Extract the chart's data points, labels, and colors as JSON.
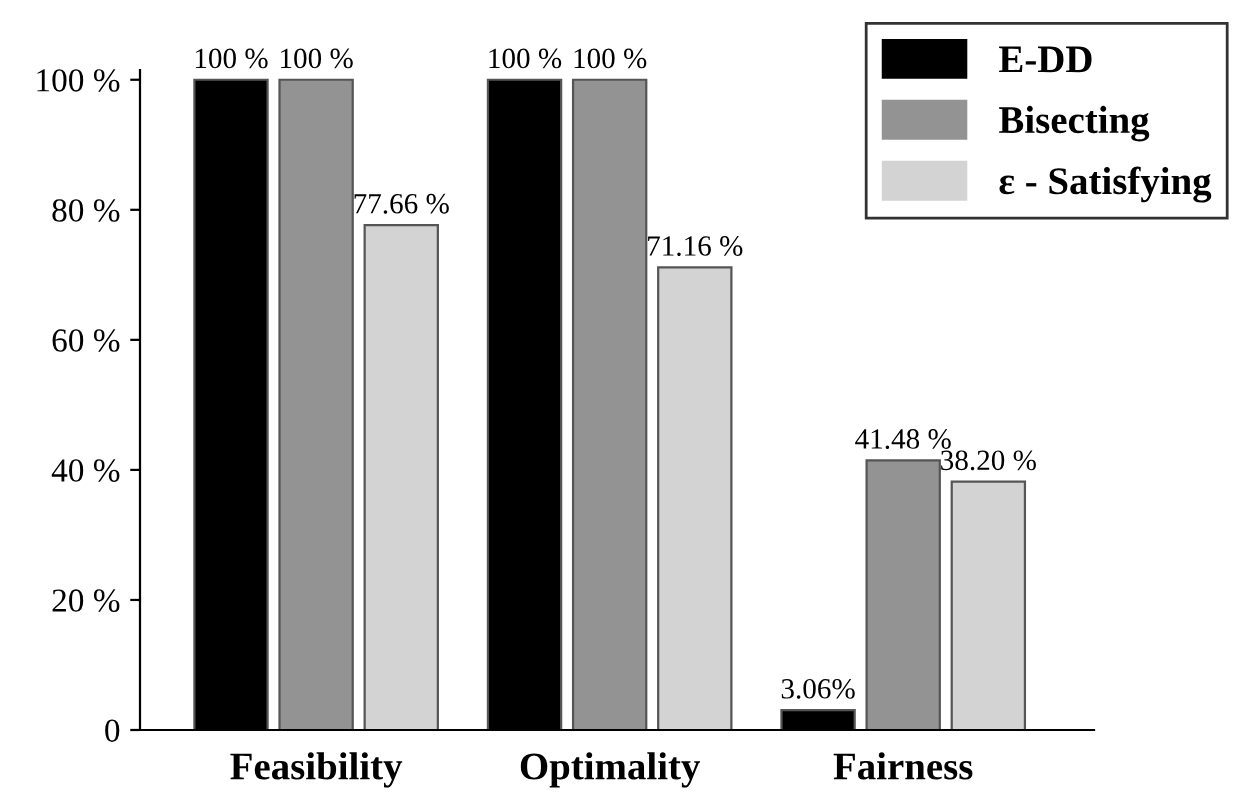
{
  "chart_data": {
    "type": "bar",
    "categories": [
      "Feasibility",
      "Optimality",
      "Fairness"
    ],
    "series": [
      {
        "name": "E-DD",
        "color": "#000000",
        "values": [
          100,
          100,
          3.06
        ],
        "value_labels": [
          "100 %",
          "100 %",
          "3.06%"
        ]
      },
      {
        "name": "Bisecting",
        "color": "#939393",
        "values": [
          100,
          100,
          41.48
        ],
        "value_labels": [
          "100 %",
          "100 %",
          "41.48 %"
        ]
      },
      {
        "name": "ε - Satisfying",
        "color": "#d3d3d3",
        "values": [
          77.66,
          71.16,
          38.2
        ],
        "value_labels": [
          "77.66 %",
          "71.16 %",
          "38.20 %"
        ]
      }
    ],
    "ylim": [
      0,
      101.5
    ],
    "yticks": [
      0,
      {
        "value": 20,
        "label": "20 %"
      },
      {
        "value": 40,
        "label": "40 %"
      },
      {
        "value": 60,
        "label": "60 %"
      },
      {
        "value": 80,
        "label": "80 %"
      },
      {
        "value": 100,
        "label": "100 %"
      }
    ],
    "grid": false,
    "legend": "top right"
  }
}
